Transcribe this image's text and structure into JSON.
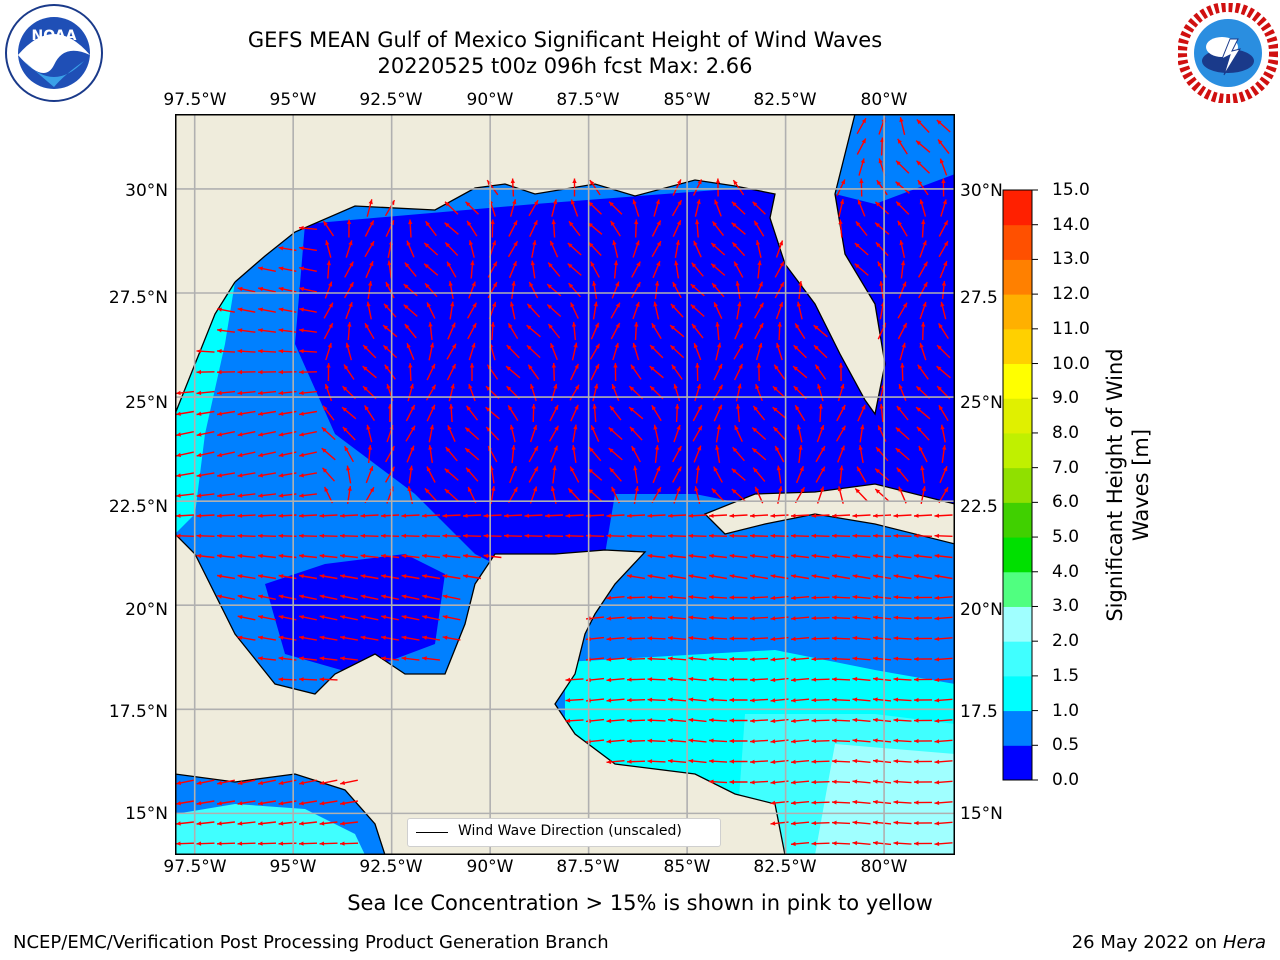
{
  "title_line1": "GEFS MEAN Gulf of Mexico Significant Height of Wind Waves",
  "title_line2": "20220525 t00z 096h fcst   Max: 2.66",
  "logos": {
    "left": {
      "name": "NOAA",
      "ring_text": "NATIONAL OCEANIC AND ATMOSPHERIC ADMINISTRATION · U.S. DEPARTMENT OF COMMERCE"
    },
    "right": {
      "name": "NATIONAL WEATHER SERVICE"
    }
  },
  "map": {
    "lon_ticks": [
      "97.5°W",
      "95°W",
      "92.5°W",
      "90°W",
      "87.5°W",
      "85°W",
      "82.5°W",
      "80°W"
    ],
    "lat_ticks": [
      "30°N",
      "27.5°N",
      "25°N",
      "22.5°N",
      "20°N",
      "17.5°N",
      "15°N"
    ],
    "lat_ticks_right": [
      "30°N",
      "27.5",
      "25°N",
      "22.5",
      "20°N",
      "17.5",
      "15°N"
    ],
    "lon_range": [
      -98,
      -78.2
    ],
    "lat_range": [
      14,
      31.8
    ],
    "land_color": "#efecdc",
    "grid": true,
    "legend_text": "Wind Wave Direction (unscaled)",
    "arrow_color": "#ff0000"
  },
  "colorbar": {
    "label": "Significant Height of Wind Waves [m]",
    "ticks": [
      "0.0",
      "0.5",
      "1.0",
      "1.5",
      "2.0",
      "3.0",
      "4.0",
      "5.0",
      "6.0",
      "7.0",
      "8.0",
      "9.0",
      "10.0",
      "11.0",
      "12.0",
      "13.0",
      "14.0",
      "15.0"
    ],
    "colors": [
      "#0000ff",
      "#0080ff",
      "#00ffff",
      "#40ffff",
      "#a0ffff",
      "#50ff80",
      "#00e000",
      "#40d000",
      "#90e000",
      "#c0f000",
      "#e0f000",
      "#ffff00",
      "#ffd000",
      "#ffb000",
      "#ff8000",
      "#ff5000",
      "#ff2000"
    ]
  },
  "sea_ice_note": "Sea Ice Concentration > 15% is shown in pink to yellow",
  "footer_left": "NCEP/EMC/Verification Post Processing Product Generation Branch",
  "footer_right_date": "26 May 2022 on",
  "footer_right_host": "Hera"
}
